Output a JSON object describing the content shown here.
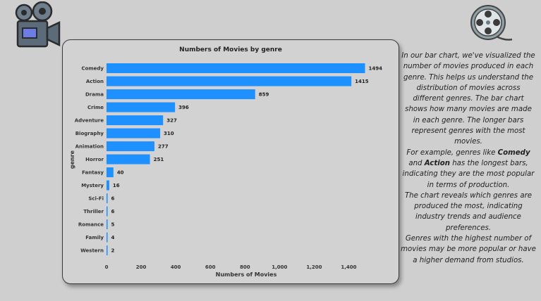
{
  "colors": {
    "bar": "#1e90ff",
    "background": "#cfcfcf",
    "card": "#d2d2d2"
  },
  "icons": {
    "camera": "movie-camera-icon",
    "film": "film-reel-icon"
  },
  "chart_data": {
    "type": "bar",
    "orientation": "horizontal",
    "title": "Numbers of Movies by genre",
    "xlabel": "Numbers of Movies",
    "ylabel": "genre",
    "categories": [
      "Comedy",
      "Action",
      "Drama",
      "Crime",
      "Adventure",
      "Biography",
      "Animation",
      "Horror",
      "Fantasy",
      "Mystery",
      "Sci-Fi",
      "Thriller",
      "Romance",
      "Family",
      "Western"
    ],
    "values": [
      1494,
      1415,
      859,
      396,
      327,
      310,
      277,
      251,
      40,
      16,
      6,
      6,
      5,
      4,
      2
    ],
    "value_labels": [
      "1494",
      "1415",
      "859",
      "396",
      "327",
      "310",
      "277",
      "251",
      "40",
      "16",
      "6",
      "6",
      "5",
      "4",
      "2"
    ],
    "xlim": [
      0,
      1500
    ],
    "xticks": [
      0,
      200,
      400,
      600,
      800,
      1000,
      1200,
      1400
    ],
    "xtick_labels": [
      "0",
      "200",
      "400",
      "600",
      "800",
      "1,000",
      "1,200",
      "1,400"
    ],
    "grid": false,
    "legend": "none"
  },
  "description": {
    "p1": "In our bar chart, we've visualized the number of movies produced in each genre. This helps us understand the distribution of movies across different genres. The bar chart shows how many movies are made in each genre. The longer bars represent genres with the most movies.",
    "p2_before": "For example, genres like ",
    "p2_bold1": "Comedy",
    "p2_mid": " and ",
    "p2_bold2": "Action",
    "p2_after": " has the longest bars, indicating they are the most popular in terms of production.",
    "p3": "The chart reveals which genres are produced the most, indicating industry trends and audience preferences.",
    "p4": "Genres with the highest number of movies may be more popular or have a higher demand from studios."
  }
}
